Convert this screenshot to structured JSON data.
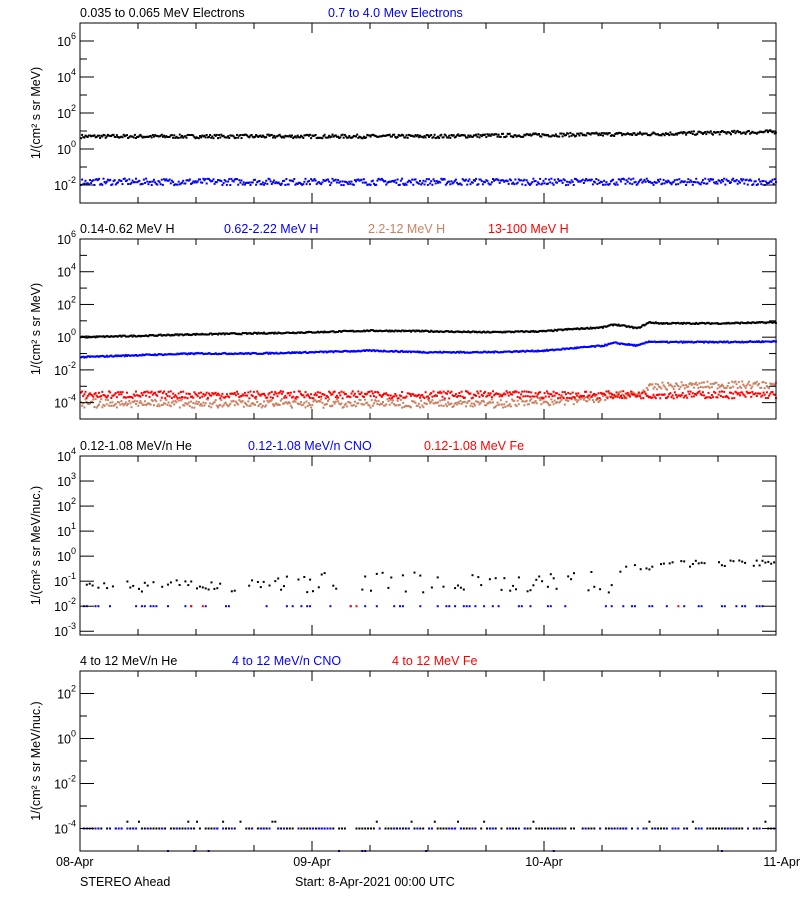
{
  "colors": {
    "black": "#000000",
    "blue": "#0000ff",
    "brown": "#cc8060",
    "red": "#ff0000"
  },
  "x_axis": {
    "tick_labels": [
      "08-Apr",
      "09-Apr",
      "10-Apr",
      "11-Apr"
    ],
    "range_days": [
      0,
      3
    ],
    "minor_step_hours": 6
  },
  "footer": {
    "spacecraft": "STEREO Ahead",
    "start": "Start:  8-Apr-2021 00:00 UTC"
  },
  "chart_data": [
    {
      "type": "scatter",
      "ylabel": "1/(cm² s sr MeV)",
      "yscale": "log",
      "ylim_exp": [
        -3,
        7
      ],
      "y_label_exps": [
        -2,
        0,
        2,
        4,
        6
      ],
      "grid": false,
      "x_days": [
        0,
        0.25,
        0.5,
        0.75,
        1,
        1.25,
        1.5,
        1.75,
        2,
        2.25,
        2.5,
        2.75,
        3
      ],
      "series": [
        {
          "name": "0.035 to 0.065 MeV Electrons",
          "color": "black",
          "values": [
            5,
            5,
            5,
            5,
            5,
            5,
            5,
            5.5,
            6,
            6.5,
            7,
            8,
            9
          ]
        },
        {
          "name": "0.7 to 4.0 Mev Electrons",
          "color": "blue",
          "values": [
            0.015,
            0.015,
            0.015,
            0.015,
            0.015,
            0.015,
            0.015,
            0.015,
            0.015,
            0.015,
            0.015,
            0.015,
            0.015
          ]
        }
      ]
    },
    {
      "type": "scatter",
      "ylabel": "1/(cm² s sr MeV)",
      "yscale": "log",
      "ylim_exp": [
        -5,
        6
      ],
      "y_label_exps": [
        -4,
        -2,
        0,
        2,
        4,
        6
      ],
      "grid": false,
      "x_days": [
        0,
        0.25,
        0.5,
        0.75,
        1,
        1.25,
        1.5,
        1.75,
        2,
        2.1,
        2.25,
        2.3,
        2.4,
        2.45,
        2.5,
        2.75,
        3
      ],
      "series": [
        {
          "name": "0.14-0.62 MeV H",
          "color": "black",
          "values": [
            1,
            1.2,
            1.5,
            1.7,
            2,
            2.5,
            2.3,
            2,
            2.3,
            3,
            4,
            6,
            3.5,
            8,
            7,
            7,
            8
          ]
        },
        {
          "name": "0.62-2.22 MeV H",
          "color": "blue",
          "values": [
            0.06,
            0.08,
            0.1,
            0.1,
            0.12,
            0.15,
            0.12,
            0.12,
            0.15,
            0.2,
            0.3,
            0.45,
            0.3,
            0.55,
            0.5,
            0.5,
            0.55
          ]
        },
        {
          "name": "2.2-12 MeV H",
          "color": "brown",
          "values": [
            0.0001,
            0.0001,
            0.0001,
            0.0001,
            0.0001,
            0.0001,
            0.0001,
            0.0001,
            0.00012,
            0.00015,
            0.0002,
            0.0003,
            0.0003,
            0.0008,
            0.001,
            0.0012,
            0.0012
          ]
        },
        {
          "name": "13-100 MeV H",
          "color": "red",
          "values": [
            0.0003,
            0.0003,
            0.0003,
            0.0003,
            0.0003,
            0.0003,
            0.0003,
            0.0003,
            0.0003,
            0.0003,
            0.0003,
            0.0003,
            0.0003,
            0.0003,
            0.0003,
            0.0003,
            0.0003
          ]
        }
      ]
    },
    {
      "type": "scatter",
      "ylabel": "1/(cm² s sr MeV/nuc.)",
      "yscale": "log",
      "ylim_exp": [
        -3.15,
        4
      ],
      "y_label_exps": [
        -3,
        -2,
        -1,
        0,
        1,
        2,
        3,
        4
      ],
      "grid": false,
      "x_days": [
        0,
        0.25,
        0.5,
        0.75,
        1,
        1.25,
        1.5,
        1.75,
        2,
        2.25,
        2.5,
        2.75,
        3
      ],
      "series": [
        {
          "name": "0.12-1.08 MeV/n He",
          "color": "black",
          "values": [
            0.07,
            0.07,
            0.08,
            0.1,
            0.15,
            0.2,
            0.15,
            0.12,
            0.13,
            0.2,
            0.5,
            0.5,
            0.6
          ]
        },
        {
          "name": "0.12-1.08 MeV/n CNO",
          "color": "blue",
          "values": [
            0.01,
            0.01,
            0.01,
            0.01,
            0.01,
            0.01,
            0.01,
            0.01,
            0.01,
            0.01,
            0.01,
            0.01,
            0.01
          ]
        },
        {
          "name": "0.12-1.08 MeV Fe",
          "color": "red",
          "values": [
            0.01,
            0.01,
            0.01,
            0.01,
            0.01,
            0.01,
            0.01,
            0.01,
            0.01,
            0.01,
            0.01,
            0.01,
            0.01
          ]
        }
      ]
    },
    {
      "type": "scatter",
      "ylabel": "1/(cm² s sr MeV/nuc.)",
      "yscale": "log",
      "ylim_exp": [
        -5,
        3
      ],
      "y_label_exps": [
        -4,
        -2,
        0,
        2
      ],
      "grid": false,
      "x_days": [
        0,
        0.5,
        1,
        1.5,
        2,
        2.5,
        3
      ],
      "series": [
        {
          "name": "4 to 12 MeV/n He",
          "color": "black",
          "values": [
            0.0001,
            0.0001,
            0.0001,
            0.0001,
            0.0001,
            0.0001,
            0.0001
          ]
        },
        {
          "name": "4 to 12 MeV/n CNO",
          "color": "blue",
          "values": [
            0.0001,
            0.0001,
            0.0001,
            0.0001,
            0.0001,
            0.0001,
            0.0001
          ]
        },
        {
          "name": "4 to 12 MeV Fe",
          "color": "red",
          "values": [
            1e-05,
            1e-05,
            1e-05,
            1e-05,
            1e-05,
            1e-05,
            1e-05
          ]
        }
      ]
    }
  ]
}
